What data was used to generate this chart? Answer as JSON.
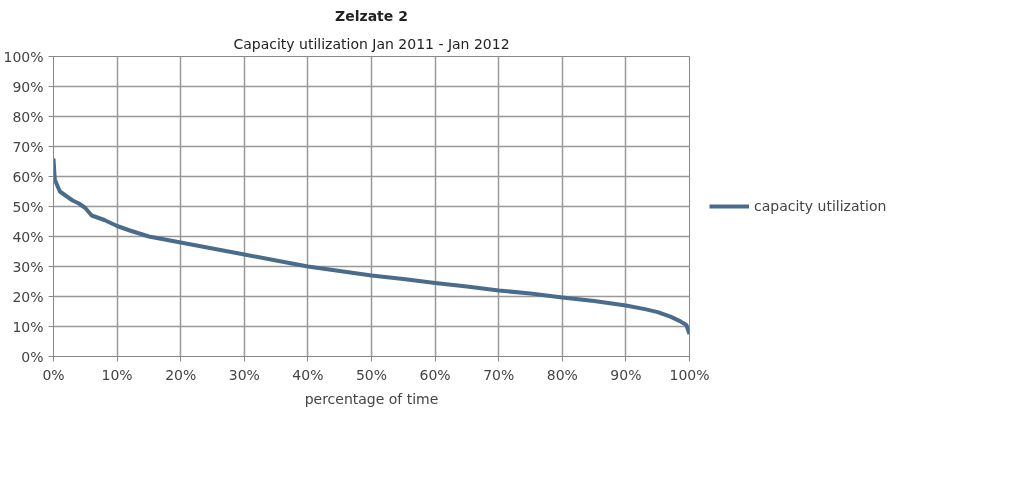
{
  "chart_data": {
    "type": "line",
    "title": "Zelzate 2",
    "subtitle": "Capacity utilization Jan 2011 - Jan 2012",
    "xlabel": "percentage of time",
    "x": [
      0,
      0.2,
      1,
      2,
      3,
      4,
      5,
      6,
      8,
      10,
      12,
      15,
      20,
      25,
      30,
      35,
      40,
      45,
      50,
      55,
      60,
      65,
      70,
      75,
      80,
      85,
      90,
      93,
      95,
      97,
      98.5,
      99.5,
      100
    ],
    "series": [
      {
        "name": "capacity utilization",
        "color": "#4a6c8c",
        "values": [
          66,
          59,
          55,
          53.5,
          52,
          51,
          49.5,
          47,
          45.5,
          43.5,
          42,
          40,
          38,
          36,
          34,
          32,
          30,
          28.5,
          27,
          25.8,
          24.5,
          23.3,
          22,
          21,
          19.7,
          18.5,
          17,
          15.8,
          14.8,
          13.3,
          11.8,
          10.5,
          7.5
        ]
      }
    ],
    "xlim": [
      0,
      100
    ],
    "ylim": [
      0,
      100
    ],
    "xticks": [
      {
        "value": 0,
        "label": "0%"
      },
      {
        "value": 10,
        "label": "10%"
      },
      {
        "value": 20,
        "label": "20%"
      },
      {
        "value": 30,
        "label": "30%"
      },
      {
        "value": 40,
        "label": "40%"
      },
      {
        "value": 50,
        "label": "50%"
      },
      {
        "value": 60,
        "label": "60%"
      },
      {
        "value": 70,
        "label": "70%"
      },
      {
        "value": 80,
        "label": "80%"
      },
      {
        "value": 90,
        "label": "90%"
      },
      {
        "value": 100,
        "label": "100%"
      }
    ],
    "yticks": [
      {
        "value": 0,
        "label": "0%"
      },
      {
        "value": 10,
        "label": "10%"
      },
      {
        "value": 20,
        "label": "20%"
      },
      {
        "value": 30,
        "label": "30%"
      },
      {
        "value": 40,
        "label": "40%"
      },
      {
        "value": 50,
        "label": "50%"
      },
      {
        "value": 60,
        "label": "60%"
      },
      {
        "value": 70,
        "label": "70%"
      },
      {
        "value": 80,
        "label": "80%"
      },
      {
        "value": 90,
        "label": "90%"
      },
      {
        "value": 100,
        "label": "100%"
      }
    ],
    "grid": true,
    "legend": "right",
    "marker": "none",
    "line_style": "solid"
  }
}
